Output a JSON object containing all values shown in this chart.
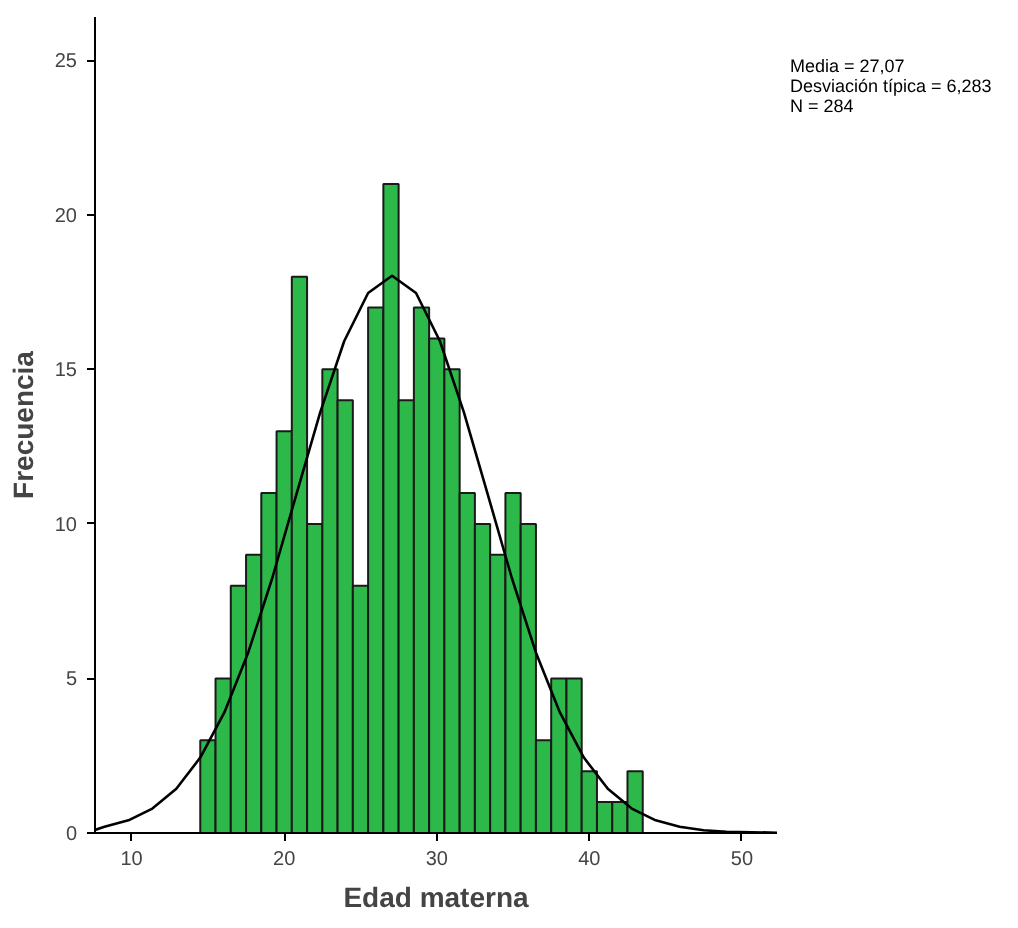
{
  "chart_data": {
    "type": "histogram",
    "xlabel": "Edad materna",
    "ylabel": "Frecuencia",
    "bins": [
      14.5,
      15.5,
      16.5,
      17.5,
      18.5,
      19.5,
      20.5,
      21.5,
      22.5,
      23.5,
      24.5,
      25.5,
      26.5,
      27.5,
      28.5,
      29.5,
      30.5,
      31.5,
      32.5,
      33.5,
      34.5,
      35.5,
      36.5,
      37.5,
      38.5,
      39.5,
      40.5,
      41.5,
      42.5,
      43.5
    ],
    "values": [
      3,
      5,
      8,
      9,
      11,
      13,
      18,
      10,
      15,
      14,
      8,
      17,
      21,
      14,
      17,
      16,
      15,
      11,
      10,
      9,
      11,
      10,
      3,
      5,
      5,
      2,
      1,
      1,
      2
    ],
    "color": "#2db84a",
    "series": [
      {
        "type": "line",
        "color": "#000000",
        "x": [
          7.6,
          8.22,
          9.79,
          11.36,
          12.93,
          14.5,
          16.08,
          17.65,
          19.22,
          20.79,
          22.36,
          23.93,
          25.5,
          27.07,
          28.64,
          30.21,
          31.78,
          33.35,
          34.92,
          36.49,
          38.07,
          39.64,
          41.21,
          42.78,
          44.35,
          45.92,
          47.49,
          49.0,
          52.3
        ],
        "values": [
          0.1,
          0.2,
          0.41,
          0.79,
          1.43,
          2.44,
          3.9,
          5.85,
          8.25,
          10.94,
          13.61,
          15.91,
          17.47,
          18.03,
          17.47,
          15.91,
          13.61,
          10.94,
          8.25,
          5.85,
          3.9,
          2.44,
          1.43,
          0.79,
          0.41,
          0.2,
          0.09,
          0.04,
          0.01
        ]
      }
    ],
    "xlim": [
      7.6,
      52.3
    ],
    "ylim": [
      0,
      26.4
    ],
    "xticks": [
      10,
      20,
      30,
      40,
      50
    ],
    "yticks": [
      0,
      5,
      10,
      15,
      20,
      25
    ],
    "grid": false,
    "annotations": [
      "Media = 27,07",
      "Desviación típica = 6,283",
      "N = 284"
    ]
  }
}
